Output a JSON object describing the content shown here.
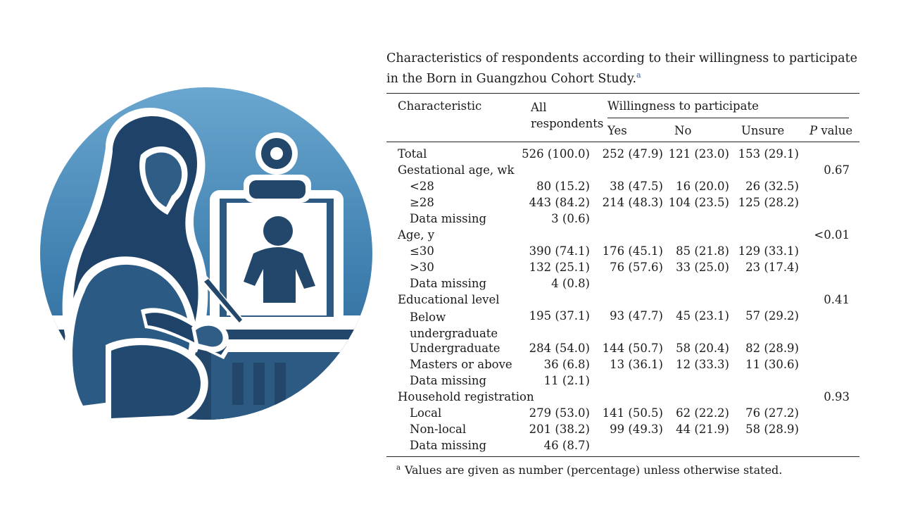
{
  "caption": {
    "text": "Characteristics of respondents according to their willingness to participate in the Born in Guangzhou Cohort Study.",
    "footnote_marker": "a"
  },
  "header": {
    "characteristic": "Characteristic",
    "all_respondents_line1": "All",
    "all_respondents_line2": "respondents",
    "willingness": "Willingness to participate",
    "yes": "Yes",
    "no": "No",
    "unsure": "Unsure",
    "p_value_italic": "P",
    "p_value_rest": " value"
  },
  "rows": [
    {
      "label": "Total",
      "indent": false,
      "all": "526 (100.0)",
      "yes": "252 (47.9)",
      "no": "121 (23.0)",
      "unsure": "153 (29.1)",
      "p": ""
    },
    {
      "label": "Gestational age, wk",
      "indent": false,
      "all": "",
      "yes": "",
      "no": "",
      "unsure": "",
      "p": "0.67"
    },
    {
      "label": "<28",
      "indent": true,
      "all": "80 (15.2)",
      "yes": "38 (47.5)",
      "no": "16 (20.0)",
      "unsure": "26 (32.5)",
      "p": ""
    },
    {
      "label": "≥28",
      "indent": true,
      "all": "443 (84.2)",
      "yes": "214 (48.3)",
      "no": "104 (23.5)",
      "unsure": "125 (28.2)",
      "p": ""
    },
    {
      "label": "Data missing",
      "indent": true,
      "all": "3 (0.6)",
      "yes": "",
      "no": "",
      "unsure": "",
      "p": ""
    },
    {
      "label": "Age, y",
      "indent": false,
      "all": "",
      "yes": "",
      "no": "",
      "unsure": "",
      "p": "<0.01"
    },
    {
      "label": "≤30",
      "indent": true,
      "all": "390 (74.1)",
      "yes": "176 (45.1)",
      "no": "85 (21.8)",
      "unsure": "129 (33.1)",
      "p": ""
    },
    {
      "label": ">30",
      "indent": true,
      "all": "132 (25.1)",
      "yes": "76 (57.6)",
      "no": "33 (25.0)",
      "unsure": "23 (17.4)",
      "p": ""
    },
    {
      "label": "Data missing",
      "indent": true,
      "all": "4 (0.8)",
      "yes": "",
      "no": "",
      "unsure": "",
      "p": ""
    },
    {
      "label": "Educational level",
      "indent": false,
      "all": "",
      "yes": "",
      "no": "",
      "unsure": "",
      "p": "0.41"
    },
    {
      "label": "Below undergraduate",
      "label_line1": "Below",
      "label_line2": "undergraduate",
      "indent": true,
      "all": "195 (37.1)",
      "yes": "93 (47.7)",
      "no": "45 (23.1)",
      "unsure": "57 (29.2)",
      "p": ""
    },
    {
      "label": "Undergraduate",
      "indent": true,
      "all": "284 (54.0)",
      "yes": "144 (50.7)",
      "no": "58 (20.4)",
      "unsure": "82 (28.9)",
      "p": ""
    },
    {
      "label": "Masters or above",
      "indent": true,
      "all": "36 (6.8)",
      "yes": "13 (36.1)",
      "no": "12 (33.3)",
      "unsure": "11 (30.6)",
      "p": ""
    },
    {
      "label": "Data missing",
      "indent": true,
      "all": "11 (2.1)",
      "yes": "",
      "no": "",
      "unsure": "",
      "p": ""
    },
    {
      "label": "Household registration",
      "indent": false,
      "all": "",
      "yes": "",
      "no": "",
      "unsure": "",
      "p": "0.93"
    },
    {
      "label": "Local",
      "indent": true,
      "all": "279 (53.0)",
      "yes": "141 (50.5)",
      "no": "62 (22.2)",
      "unsure": "76 (27.2)",
      "p": ""
    },
    {
      "label": "Non-local",
      "indent": true,
      "all": "201 (38.2)",
      "yes": "99 (49.3)",
      "no": "44 (21.9)",
      "unsure": "58 (28.9)",
      "p": ""
    },
    {
      "label": "Data missing",
      "indent": true,
      "all": "46 (8.7)",
      "yes": "",
      "no": "",
      "unsure": "",
      "p": ""
    }
  ],
  "footnote": {
    "marker": "a",
    "text": "Values are given as number (percentage) unless otherwise stated."
  },
  "illustration": {
    "icon": "pregnant-woman-writing-icon",
    "colors": {
      "circle_light": "#4f8fba",
      "circle_dark": "#2b5f8a",
      "figure_dark": "#234a6e",
      "figure_mid": "#2f5d86",
      "outline": "#ffffff"
    }
  }
}
